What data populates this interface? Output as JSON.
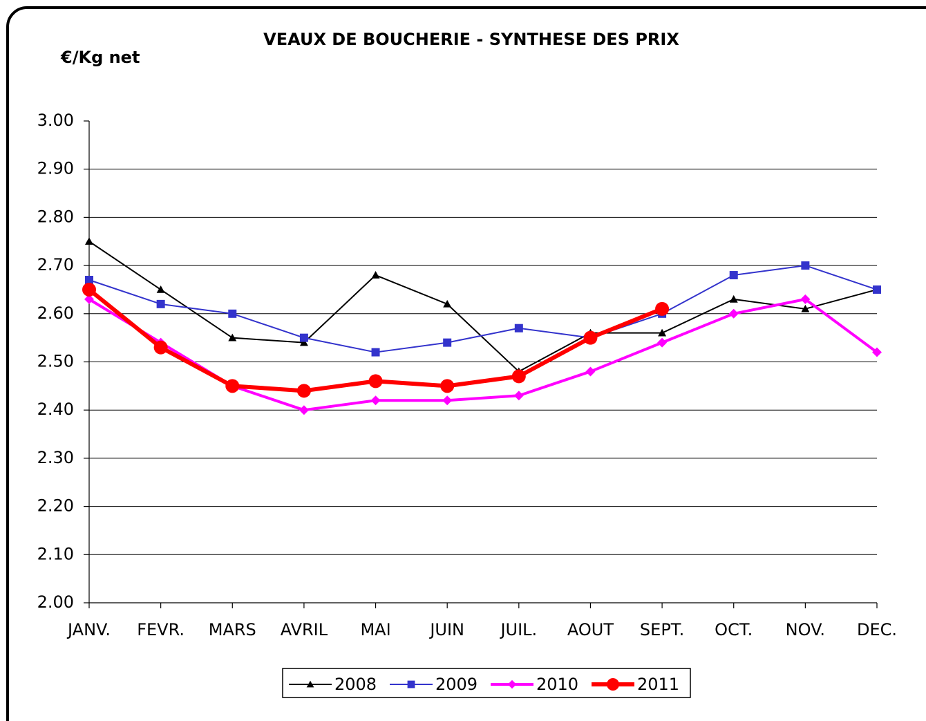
{
  "chart_data": {
    "type": "line",
    "title": "VEAUX DE BOUCHERIE - SYNTHESE DES PRIX",
    "y_label": "€/Kg net",
    "categories": [
      "JANV.",
      "FEVR.",
      "MARS",
      "AVRIL",
      "MAI",
      "JUIN",
      "JUIL.",
      "AOUT",
      "SEPT.",
      "OCT.",
      "NOV.",
      "DEC."
    ],
    "series": [
      {
        "name": "2008",
        "color": "#000000",
        "marker": "triangle",
        "values": [
          2.75,
          2.65,
          2.55,
          2.54,
          2.68,
          2.62,
          2.48,
          2.56,
          2.56,
          2.63,
          2.61,
          2.65
        ]
      },
      {
        "name": "2009",
        "color": "#3333cc",
        "marker": "square",
        "values": [
          2.67,
          2.62,
          2.6,
          2.55,
          2.52,
          2.54,
          2.57,
          2.55,
          2.6,
          2.68,
          2.7,
          2.65
        ]
      },
      {
        "name": "2010",
        "color": "#ff00ff",
        "marker": "diamond",
        "values": [
          2.63,
          2.54,
          2.45,
          2.4,
          2.42,
          2.42,
          2.43,
          2.48,
          2.54,
          2.6,
          2.63,
          2.52
        ]
      },
      {
        "name": "2011",
        "color": "#ff0000",
        "marker": "circle",
        "values": [
          2.65,
          2.53,
          2.45,
          2.44,
          2.46,
          2.45,
          2.47,
          2.55,
          2.61,
          null,
          null,
          null
        ]
      }
    ],
    "ylim": [
      2.0,
      3.0
    ],
    "yticks": [
      {
        "value": 2.0,
        "label": "2.00"
      },
      {
        "value": 2.1,
        "label": "2.10"
      },
      {
        "value": 2.2,
        "label": "2.20"
      },
      {
        "value": 2.3,
        "label": "2.30"
      },
      {
        "value": 2.4,
        "label": "2.40"
      },
      {
        "value": 2.5,
        "label": "2.50"
      },
      {
        "value": 2.6,
        "label": "2.60"
      },
      {
        "value": 2.7,
        "label": "2.70"
      },
      {
        "value": 2.8,
        "label": "2.80"
      },
      {
        "value": 2.9,
        "label": "2.90"
      },
      {
        "value": 3.0,
        "label": "3.00"
      }
    ],
    "grid": true,
    "legend": "bottom"
  }
}
